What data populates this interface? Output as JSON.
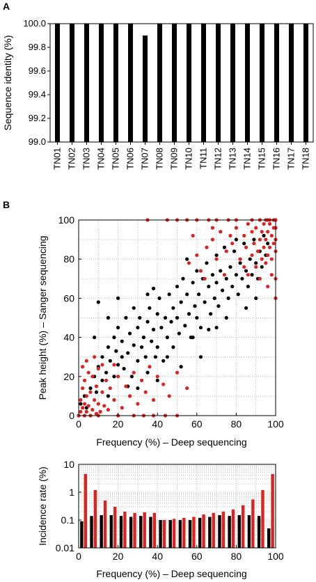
{
  "panels": {
    "a_label": "A",
    "b_label": "B"
  },
  "chart_data": [
    {
      "panel": "A",
      "type": "bar",
      "ylabel": "Sequence identity (%)",
      "xlabel": "",
      "ylim": [
        99.0,
        100.0
      ],
      "yticks": [
        "99.0",
        "99.2",
        "99.4",
        "99.6",
        "99.8",
        "100.0"
      ],
      "categories": [
        "TN01",
        "TN02",
        "TN03",
        "TN04",
        "TN05",
        "TN06",
        "TN07",
        "TN08",
        "TN09",
        "TN10",
        "TN11",
        "TN12",
        "TN13",
        "TN14",
        "TN15",
        "TN16",
        "TN17",
        "TN18"
      ],
      "values": [
        100.0,
        100.0,
        100.0,
        100.0,
        100.0,
        100.0,
        99.9,
        100.0,
        100.0,
        100.0,
        100.0,
        100.0,
        100.0,
        100.0,
        100.0,
        100.0,
        100.0,
        100.0
      ],
      "bar_color": "#000000",
      "grid": false
    },
    {
      "panel": "B-top",
      "type": "scatter",
      "xlabel": "Frequency (%) – Deep sequencing",
      "ylabel": "Peak height (%) – Sanger sequencing",
      "xlim": [
        0,
        100
      ],
      "ylim": [
        0,
        100
      ],
      "xticks": [
        "0",
        "20",
        "40",
        "60",
        "80",
        "100"
      ],
      "yticks": [
        "0",
        "20",
        "40",
        "60",
        "80",
        "100"
      ],
      "grid": true,
      "series": [
        {
          "color": "#000000",
          "points": [
            [
              1,
              6
            ],
            [
              3,
              10
            ],
            [
              4,
              4
            ],
            [
              6,
              14
            ],
            [
              8,
              20
            ],
            [
              9,
              12
            ],
            [
              10,
              25
            ],
            [
              12,
              30
            ],
            [
              12,
              18
            ],
            [
              14,
              22
            ],
            [
              15,
              35
            ],
            [
              15,
              10
            ],
            [
              16,
              28
            ],
            [
              18,
              40
            ],
            [
              18,
              20
            ],
            [
              19,
              33
            ],
            [
              20,
              26
            ],
            [
              20,
              45
            ],
            [
              22,
              30
            ],
            [
              22,
              38
            ],
            [
              23,
              24
            ],
            [
              24,
              50
            ],
            [
              25,
              32
            ],
            [
              26,
              42
            ],
            [
              27,
              20
            ],
            [
              28,
              36
            ],
            [
              28,
              55
            ],
            [
              30,
              28
            ],
            [
              30,
              45
            ],
            [
              31,
              50
            ],
            [
              32,
              35
            ],
            [
              33,
              40
            ],
            [
              34,
              30
            ],
            [
              35,
              48
            ],
            [
              35,
              22
            ],
            [
              36,
              55
            ],
            [
              37,
              38
            ],
            [
              38,
              44
            ],
            [
              39,
              30
            ],
            [
              40,
              52
            ],
            [
              40,
              35
            ],
            [
              41,
              60
            ],
            [
              42,
              45
            ],
            [
              43,
              28
            ],
            [
              44,
              50
            ],
            [
              45,
              40
            ],
            [
              46,
              62
            ],
            [
              47,
              48
            ],
            [
              48,
              55
            ],
            [
              48,
              35
            ],
            [
              50,
              50
            ],
            [
              50,
              66
            ],
            [
              51,
              42
            ],
            [
              52,
              58
            ],
            [
              53,
              70
            ],
            [
              54,
              46
            ],
            [
              55,
              62
            ],
            [
              56,
              52
            ],
            [
              57,
              40
            ],
            [
              58,
              68
            ],
            [
              59,
              56
            ],
            [
              60,
              74
            ],
            [
              60,
              50
            ],
            [
              61,
              62
            ],
            [
              62,
              45
            ],
            [
              63,
              70
            ],
            [
              64,
              58
            ],
            [
              65,
              78
            ],
            [
              66,
              66
            ],
            [
              67,
              52
            ],
            [
              68,
              72
            ],
            [
              69,
              60
            ],
            [
              70,
              82
            ],
            [
              70,
              68
            ],
            [
              71,
              56
            ],
            [
              72,
              74
            ],
            [
              73,
              64
            ],
            [
              74,
              86
            ],
            [
              75,
              70
            ],
            [
              76,
              60
            ],
            [
              77,
              76
            ],
            [
              78,
              66
            ],
            [
              79,
              84
            ],
            [
              80,
              72
            ],
            [
              81,
              62
            ],
            [
              82,
              78
            ],
            [
              83,
              70
            ],
            [
              84,
              88
            ],
            [
              85,
              74
            ],
            [
              86,
              66
            ],
            [
              87,
              80
            ],
            [
              88,
              72
            ],
            [
              89,
              90
            ],
            [
              90,
              78
            ],
            [
              91,
              70
            ],
            [
              92,
              84
            ],
            [
              93,
              76
            ],
            [
              94,
              92
            ],
            [
              95,
              82
            ],
            [
              96,
              88
            ],
            [
              10,
              58
            ],
            [
              20,
              60
            ],
            [
              35,
              62
            ],
            [
              45,
              30
            ],
            [
              52,
              25
            ],
            [
              62,
              30
            ],
            [
              70,
              45
            ],
            [
              30,
              14
            ],
            [
              40,
              18
            ],
            [
              85,
              55
            ],
            [
              90,
              60
            ],
            [
              8,
              40
            ],
            [
              15,
              50
            ],
            [
              25,
              15
            ],
            [
              38,
              65
            ],
            [
              58,
              40
            ],
            [
              66,
              44
            ],
            [
              75,
              50
            ],
            [
              80,
              90
            ],
            [
              55,
              80
            ]
          ]
        },
        {
          "color": "#dd2222",
          "points": [
            [
              0,
              0
            ],
            [
              1,
              2
            ],
            [
              1,
              8
            ],
            [
              2,
              4
            ],
            [
              2,
              14
            ],
            [
              3,
              0
            ],
            [
              3,
              6
            ],
            [
              3,
              18
            ],
            [
              4,
              2
            ],
            [
              4,
              10
            ],
            [
              5,
              22
            ],
            [
              5,
              5
            ],
            [
              6,
              0
            ],
            [
              6,
              12
            ],
            [
              7,
              3
            ],
            [
              7,
              20
            ],
            [
              8,
              8
            ],
            [
              9,
              1
            ],
            [
              9,
              15
            ],
            [
              10,
              6
            ],
            [
              10,
              24
            ],
            [
              11,
              2
            ],
            [
              12,
              12
            ],
            [
              13,
              5
            ],
            [
              14,
              18
            ],
            [
              15,
              3
            ],
            [
              16,
              14
            ],
            [
              18,
              8
            ],
            [
              20,
              20
            ],
            [
              22,
              4
            ],
            [
              24,
              15
            ],
            [
              26,
              10
            ],
            [
              28,
              22
            ],
            [
              30,
              6
            ],
            [
              32,
              18
            ],
            [
              34,
              12
            ],
            [
              36,
              25
            ],
            [
              38,
              8
            ],
            [
              40,
              20
            ],
            [
              43,
              16
            ],
            [
              46,
              10
            ],
            [
              50,
              22
            ],
            [
              55,
              14
            ],
            [
              4,
              28
            ],
            [
              8,
              30
            ],
            [
              2,
              25
            ],
            [
              12,
              26
            ],
            [
              18,
              26
            ],
            [
              35,
              100
            ],
            [
              45,
              100
            ],
            [
              50,
              100
            ],
            [
              55,
              100
            ],
            [
              60,
              100
            ],
            [
              66,
              100
            ],
            [
              70,
              100
            ],
            [
              76,
              100
            ],
            [
              80,
              100
            ],
            [
              88,
              100
            ],
            [
              92,
              100
            ],
            [
              96,
              100
            ],
            [
              0,
              0
            ],
            [
              10,
              0
            ],
            [
              20,
              0
            ],
            [
              28,
              0
            ],
            [
              33,
              0
            ],
            [
              38,
              0
            ],
            [
              44,
              0
            ],
            [
              50,
              0
            ],
            [
              56,
              78
            ],
            [
              60,
              82
            ],
            [
              62,
              74
            ],
            [
              65,
              86
            ],
            [
              68,
              90
            ],
            [
              70,
              80
            ],
            [
              72,
              94
            ],
            [
              75,
              84
            ],
            [
              78,
              88
            ],
            [
              80,
              96
            ],
            [
              82,
              80
            ],
            [
              84,
              92
            ],
            [
              85,
              86
            ],
            [
              86,
              98
            ],
            [
              88,
              82
            ],
            [
              88,
              94
            ],
            [
              89,
              88
            ],
            [
              90,
              76
            ],
            [
              90,
              96
            ],
            [
              91,
              84
            ],
            [
              92,
              90
            ],
            [
              92,
              100
            ],
            [
              93,
              80
            ],
            [
              93,
              94
            ],
            [
              94,
              86
            ],
            [
              94,
              98
            ],
            [
              95,
              78
            ],
            [
              95,
              90
            ],
            [
              96,
              82
            ],
            [
              96,
              94
            ],
            [
              97,
              86
            ],
            [
              97,
              98
            ],
            [
              98,
              80
            ],
            [
              98,
              92
            ],
            [
              99,
              88
            ],
            [
              99,
              96
            ],
            [
              100,
              84
            ],
            [
              100,
              90
            ],
            [
              100,
              96
            ],
            [
              64,
              70
            ],
            [
              74,
              72
            ],
            [
              86,
              72
            ],
            [
              92,
              70
            ],
            [
              98,
              72
            ],
            [
              100,
              60
            ],
            [
              100,
              70
            ],
            [
              96,
              66
            ],
            [
              84,
              76
            ],
            [
              77,
              92
            ],
            [
              68,
              96
            ],
            [
              58,
              92
            ],
            [
              99,
              100
            ],
            [
              100,
              100
            ],
            [
              97,
              100
            ],
            [
              95,
              100
            ]
          ]
        }
      ]
    },
    {
      "panel": "B-bottom",
      "type": "bar",
      "xlabel": "Frequency (%) – Deep sequencing",
      "ylabel": "Incidence rate (%)",
      "xlim": [
        0,
        100
      ],
      "ylim": [
        0.01,
        10
      ],
      "yscale": "log",
      "xticks": [
        "0",
        "20",
        "40",
        "60",
        "80",
        "100"
      ],
      "yticks": [
        "0.01",
        "0.1",
        "1",
        "10"
      ],
      "grid": true,
      "x": [
        2.5,
        7.5,
        12.5,
        17.5,
        22.5,
        27.5,
        32.5,
        37.5,
        42.5,
        47.5,
        52.5,
        57.5,
        62.5,
        67.5,
        72.5,
        77.5,
        82.5,
        87.5,
        92.5,
        97.5
      ],
      "series": [
        {
          "color": "#000000",
          "values": [
            0.09,
            0.14,
            0.15,
            0.15,
            0.14,
            0.13,
            0.14,
            0.13,
            0.1,
            0.1,
            0.1,
            0.1,
            0.12,
            0.13,
            0.15,
            0.14,
            0.15,
            0.15,
            0.14,
            0.05
          ]
        },
        {
          "color": "#dd2222",
          "values": [
            4.5,
            1.2,
            0.5,
            0.3,
            0.2,
            0.18,
            0.19,
            0.18,
            0.1,
            0.11,
            0.12,
            0.13,
            0.16,
            0.18,
            0.2,
            0.24,
            0.34,
            0.55,
            1.2,
            4.5
          ]
        }
      ]
    }
  ]
}
